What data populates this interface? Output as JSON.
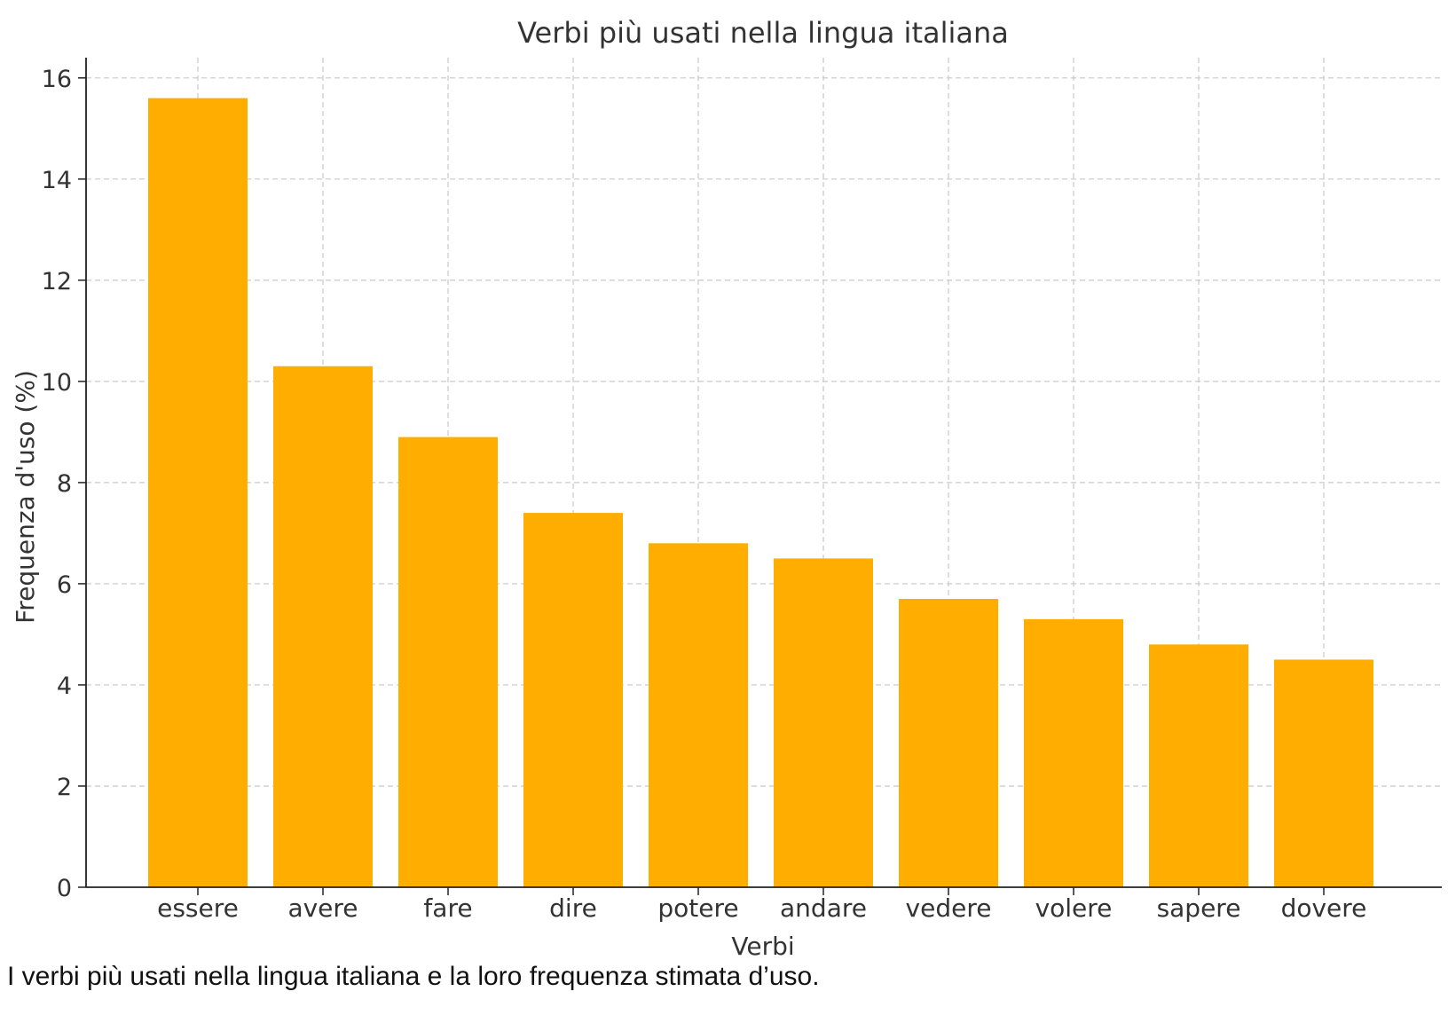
{
  "chart_data": {
    "type": "bar",
    "title": "Verbi più usati nella lingua italiana",
    "xlabel": "Verbi",
    "ylabel": "Frequenza d'uso (%)",
    "categories": [
      "essere",
      "avere",
      "fare",
      "dire",
      "potere",
      "andare",
      "vedere",
      "volere",
      "sapere",
      "dovere"
    ],
    "values": [
      15.6,
      10.3,
      8.9,
      7.4,
      6.8,
      6.5,
      5.7,
      5.3,
      4.8,
      4.5
    ],
    "ylim": [
      0,
      16.4
    ],
    "yticks": [
      0,
      2,
      4,
      6,
      8,
      10,
      12,
      14,
      16
    ],
    "grid": true,
    "bar_color": "#FFAE00"
  },
  "caption": "I verbi più usati nella lingua italiana e la loro frequenza stimata d’uso."
}
